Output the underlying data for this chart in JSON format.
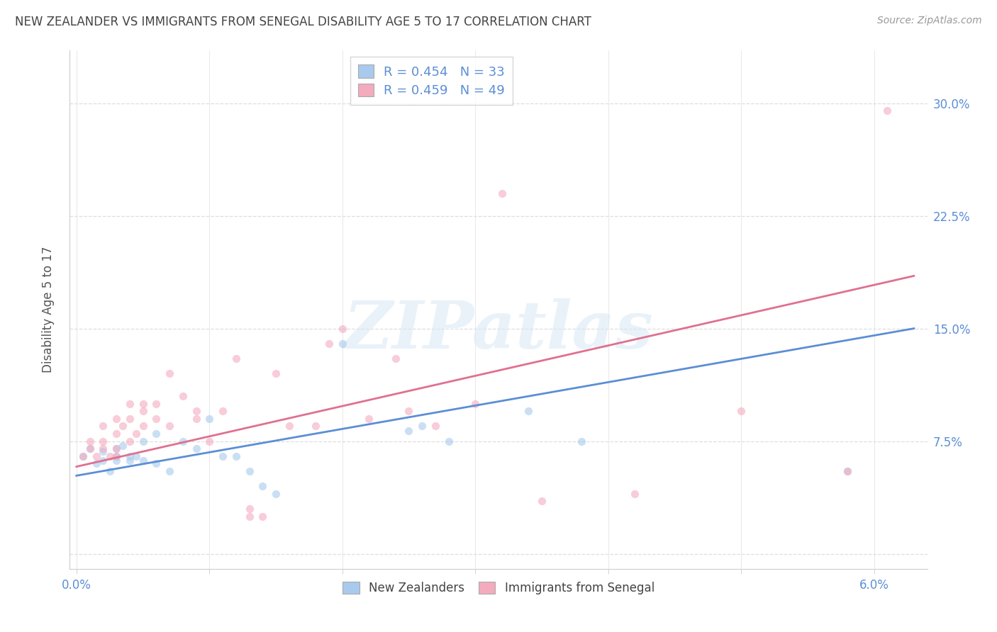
{
  "title": "NEW ZEALANDER VS IMMIGRANTS FROM SENEGAL DISABILITY AGE 5 TO 17 CORRELATION CHART",
  "source": "Source: ZipAtlas.com",
  "ylabel": "Disability Age 5 to 17",
  "series1_label": "New Zealanders",
  "series2_label": "Immigrants from Senegal",
  "series1_color": "#A8CAED",
  "series2_color": "#F4ABBE",
  "trendline1_color": "#5B8ED6",
  "trendline2_color": "#E07090",
  "legend_line1": "R = 0.454   N = 33",
  "legend_line2": "R = 0.459   N = 49",
  "bg_color": "#FFFFFF",
  "grid_color": "#DEDEDE",
  "title_color": "#444444",
  "source_color": "#999999",
  "tick_color": "#5B8ED6",
  "xlim": [
    -0.0005,
    0.064
  ],
  "ylim": [
    -0.01,
    0.335
  ],
  "x_ticks": [
    0.0,
    0.01,
    0.02,
    0.03,
    0.04,
    0.05,
    0.06
  ],
  "x_tick_labels": [
    "0.0%",
    "",
    "",
    "",
    "",
    "",
    "6.0%"
  ],
  "y_ticks": [
    0.0,
    0.075,
    0.15,
    0.225,
    0.3
  ],
  "y_tick_labels": [
    "",
    "7.5%",
    "15.0%",
    "22.5%",
    "30.0%"
  ],
  "blue_x": [
    0.0005,
    0.001,
    0.0015,
    0.002,
    0.002,
    0.0025,
    0.003,
    0.003,
    0.003,
    0.0035,
    0.004,
    0.004,
    0.0045,
    0.005,
    0.005,
    0.006,
    0.006,
    0.007,
    0.008,
    0.009,
    0.01,
    0.011,
    0.012,
    0.013,
    0.014,
    0.015,
    0.02,
    0.025,
    0.026,
    0.028,
    0.034,
    0.038,
    0.058
  ],
  "blue_y": [
    0.065,
    0.07,
    0.06,
    0.062,
    0.068,
    0.055,
    0.062,
    0.07,
    0.065,
    0.072,
    0.065,
    0.062,
    0.065,
    0.075,
    0.062,
    0.08,
    0.06,
    0.055,
    0.075,
    0.07,
    0.09,
    0.065,
    0.065,
    0.055,
    0.045,
    0.04,
    0.14,
    0.082,
    0.085,
    0.075,
    0.095,
    0.075,
    0.055
  ],
  "pink_x": [
    0.0005,
    0.001,
    0.001,
    0.0015,
    0.002,
    0.002,
    0.002,
    0.0025,
    0.003,
    0.003,
    0.003,
    0.003,
    0.0035,
    0.004,
    0.004,
    0.004,
    0.0045,
    0.005,
    0.005,
    0.005,
    0.006,
    0.006,
    0.007,
    0.007,
    0.008,
    0.009,
    0.009,
    0.01,
    0.011,
    0.012,
    0.013,
    0.013,
    0.014,
    0.015,
    0.016,
    0.018,
    0.019,
    0.02,
    0.022,
    0.024,
    0.025,
    0.027,
    0.03,
    0.032,
    0.035,
    0.042,
    0.05,
    0.058,
    0.061
  ],
  "pink_y": [
    0.065,
    0.07,
    0.075,
    0.065,
    0.07,
    0.075,
    0.085,
    0.065,
    0.065,
    0.07,
    0.08,
    0.09,
    0.085,
    0.075,
    0.09,
    0.1,
    0.08,
    0.085,
    0.095,
    0.1,
    0.09,
    0.1,
    0.12,
    0.085,
    0.105,
    0.09,
    0.095,
    0.075,
    0.095,
    0.13,
    0.025,
    0.03,
    0.025,
    0.12,
    0.085,
    0.085,
    0.14,
    0.15,
    0.09,
    0.13,
    0.095,
    0.085,
    0.1,
    0.24,
    0.035,
    0.04,
    0.095,
    0.055,
    0.295
  ],
  "trend1_x": [
    0.0,
    0.063
  ],
  "trend1_y": [
    0.052,
    0.15
  ],
  "trend2_x": [
    0.0,
    0.063
  ],
  "trend2_y": [
    0.058,
    0.185
  ],
  "marker_size": 65,
  "marker_alpha": 0.6,
  "watermark": "ZIPatlas",
  "watermark_color": "#D8E8F5",
  "watermark_alpha": 0.55
}
